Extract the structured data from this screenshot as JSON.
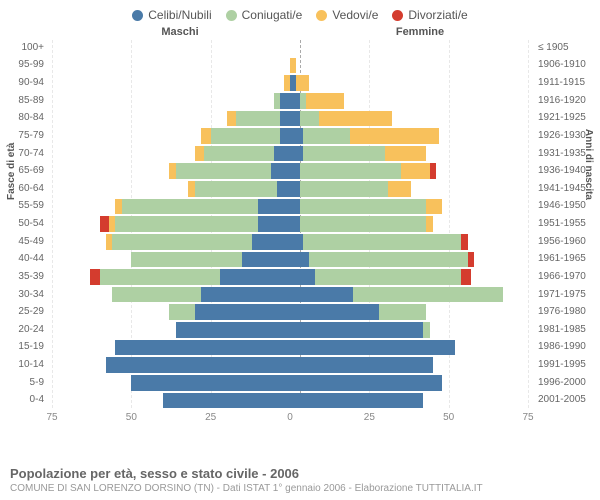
{
  "legend": [
    {
      "label": "Celibi/Nubili",
      "color": "#4a7aa8"
    },
    {
      "label": "Coniugati/e",
      "color": "#aed0a3"
    },
    {
      "label": "Vedovi/e",
      "color": "#f8c15c"
    },
    {
      "label": "Divorziati/e",
      "color": "#d43c2e"
    }
  ],
  "headers": {
    "male": "Maschi",
    "female": "Femmine"
  },
  "y_axis_left": "Fasce di età",
  "y_axis_right": "Anni di nascita",
  "x_ticks": [
    "75",
    "50",
    "25",
    "0",
    "25",
    "50",
    "75"
  ],
  "x_max": 75,
  "footer": {
    "title": "Popolazione per età, sesso e stato civile - 2006",
    "subtitle": "COMUNE DI SAN LORENZO DORSINO (TN) - Dati ISTAT 1° gennaio 2006 - Elaborazione TUTTITALIA.IT"
  },
  "colors": {
    "celibi": "#4a7aa8",
    "coniugati": "#aed0a3",
    "vedovi": "#f8c15c",
    "divorziati": "#d43c2e",
    "background": "#ffffff",
    "grid": "#e8e8e8",
    "centerline": "#aaaaaa",
    "text_muted": "#888888"
  },
  "rows": [
    {
      "age": "100+",
      "birth": "≤ 1905",
      "male": {
        "celibi": 0,
        "coniugati": 0,
        "vedovi": 0,
        "divorziati": 0
      },
      "female": {
        "celibi": 0,
        "coniugati": 0,
        "vedovi": 0,
        "divorziati": 0
      }
    },
    {
      "age": "95-99",
      "birth": "1906-1910",
      "male": {
        "celibi": 0,
        "coniugati": 0,
        "vedovi": 0,
        "divorziati": 0
      },
      "female": {
        "celibi": 0,
        "coniugati": 0,
        "vedovi": 2,
        "divorziati": 0
      }
    },
    {
      "age": "90-94",
      "birth": "1911-1915",
      "male": {
        "celibi": 0,
        "coniugati": 0,
        "vedovi": 2,
        "divorziati": 0
      },
      "female": {
        "celibi": 2,
        "coniugati": 0,
        "vedovi": 4,
        "divorziati": 0
      }
    },
    {
      "age": "85-89",
      "birth": "1916-1920",
      "male": {
        "celibi": 3,
        "coniugati": 2,
        "vedovi": 0,
        "divorziati": 0
      },
      "female": {
        "celibi": 3,
        "coniugati": 2,
        "vedovi": 12,
        "divorziati": 0
      }
    },
    {
      "age": "80-84",
      "birth": "1921-1925",
      "male": {
        "celibi": 3,
        "coniugati": 14,
        "vedovi": 3,
        "divorziati": 0
      },
      "female": {
        "celibi": 3,
        "coniugati": 6,
        "vedovi": 23,
        "divorziati": 0
      }
    },
    {
      "age": "75-79",
      "birth": "1926-1930",
      "male": {
        "celibi": 3,
        "coniugati": 22,
        "vedovi": 3,
        "divorziati": 0
      },
      "female": {
        "celibi": 4,
        "coniugati": 15,
        "vedovi": 28,
        "divorziati": 0
      }
    },
    {
      "age": "70-74",
      "birth": "1931-1935",
      "male": {
        "celibi": 5,
        "coniugati": 22,
        "vedovi": 3,
        "divorziati": 0
      },
      "female": {
        "celibi": 4,
        "coniugati": 26,
        "vedovi": 13,
        "divorziati": 0
      }
    },
    {
      "age": "65-69",
      "birth": "1936-1940",
      "male": {
        "celibi": 6,
        "coniugati": 30,
        "vedovi": 2,
        "divorziati": 0
      },
      "female": {
        "celibi": 3,
        "coniugati": 32,
        "vedovi": 9,
        "divorziati": 2
      }
    },
    {
      "age": "60-64",
      "birth": "1941-1945",
      "male": {
        "celibi": 4,
        "coniugati": 26,
        "vedovi": 2,
        "divorziati": 0
      },
      "female": {
        "celibi": 3,
        "coniugati": 28,
        "vedovi": 7,
        "divorziati": 0
      }
    },
    {
      "age": "55-59",
      "birth": "1946-1950",
      "male": {
        "celibi": 10,
        "coniugati": 43,
        "vedovi": 2,
        "divorziati": 0
      },
      "female": {
        "celibi": 3,
        "coniugati": 40,
        "vedovi": 5,
        "divorziati": 0
      }
    },
    {
      "age": "50-54",
      "birth": "1951-1955",
      "male": {
        "celibi": 10,
        "coniugati": 45,
        "vedovi": 2,
        "divorziati": 3
      },
      "female": {
        "celibi": 3,
        "coniugati": 40,
        "vedovi": 2,
        "divorziati": 0
      }
    },
    {
      "age": "45-49",
      "birth": "1956-1960",
      "male": {
        "celibi": 12,
        "coniugati": 44,
        "vedovi": 2,
        "divorziati": 0
      },
      "female": {
        "celibi": 4,
        "coniugati": 50,
        "vedovi": 0,
        "divorziati": 2
      }
    },
    {
      "age": "40-44",
      "birth": "1961-1965",
      "male": {
        "celibi": 15,
        "coniugati": 35,
        "vedovi": 0,
        "divorziati": 0
      },
      "female": {
        "celibi": 6,
        "coniugati": 50,
        "vedovi": 0,
        "divorziati": 2
      }
    },
    {
      "age": "35-39",
      "birth": "1966-1970",
      "male": {
        "celibi": 22,
        "coniugati": 38,
        "vedovi": 0,
        "divorziati": 3
      },
      "female": {
        "celibi": 8,
        "coniugati": 46,
        "vedovi": 0,
        "divorziati": 3
      }
    },
    {
      "age": "30-34",
      "birth": "1971-1975",
      "male": {
        "celibi": 28,
        "coniugati": 28,
        "vedovi": 0,
        "divorziati": 0
      },
      "female": {
        "celibi": 20,
        "coniugati": 47,
        "vedovi": 0,
        "divorziati": 0
      }
    },
    {
      "age": "25-29",
      "birth": "1976-1980",
      "male": {
        "celibi": 30,
        "coniugati": 8,
        "vedovi": 0,
        "divorziati": 0
      },
      "female": {
        "celibi": 28,
        "coniugati": 15,
        "vedovi": 0,
        "divorziati": 0
      }
    },
    {
      "age": "20-24",
      "birth": "1981-1985",
      "male": {
        "celibi": 36,
        "coniugati": 0,
        "vedovi": 0,
        "divorziati": 0
      },
      "female": {
        "celibi": 42,
        "coniugati": 2,
        "vedovi": 0,
        "divorziati": 0
      }
    },
    {
      "age": "15-19",
      "birth": "1986-1990",
      "male": {
        "celibi": 55,
        "coniugati": 0,
        "vedovi": 0,
        "divorziati": 0
      },
      "female": {
        "celibi": 52,
        "coniugati": 0,
        "vedovi": 0,
        "divorziati": 0
      }
    },
    {
      "age": "10-14",
      "birth": "1991-1995",
      "male": {
        "celibi": 58,
        "coniugati": 0,
        "vedovi": 0,
        "divorziati": 0
      },
      "female": {
        "celibi": 45,
        "coniugati": 0,
        "vedovi": 0,
        "divorziati": 0
      }
    },
    {
      "age": "5-9",
      "birth": "1996-2000",
      "male": {
        "celibi": 50,
        "coniugati": 0,
        "vedovi": 0,
        "divorziati": 0
      },
      "female": {
        "celibi": 48,
        "coniugati": 0,
        "vedovi": 0,
        "divorziati": 0
      }
    },
    {
      "age": "0-4",
      "birth": "2001-2005",
      "male": {
        "celibi": 40,
        "coniugati": 0,
        "vedovi": 0,
        "divorziati": 0
      },
      "female": {
        "celibi": 42,
        "coniugati": 0,
        "vedovi": 0,
        "divorziati": 0
      }
    }
  ]
}
